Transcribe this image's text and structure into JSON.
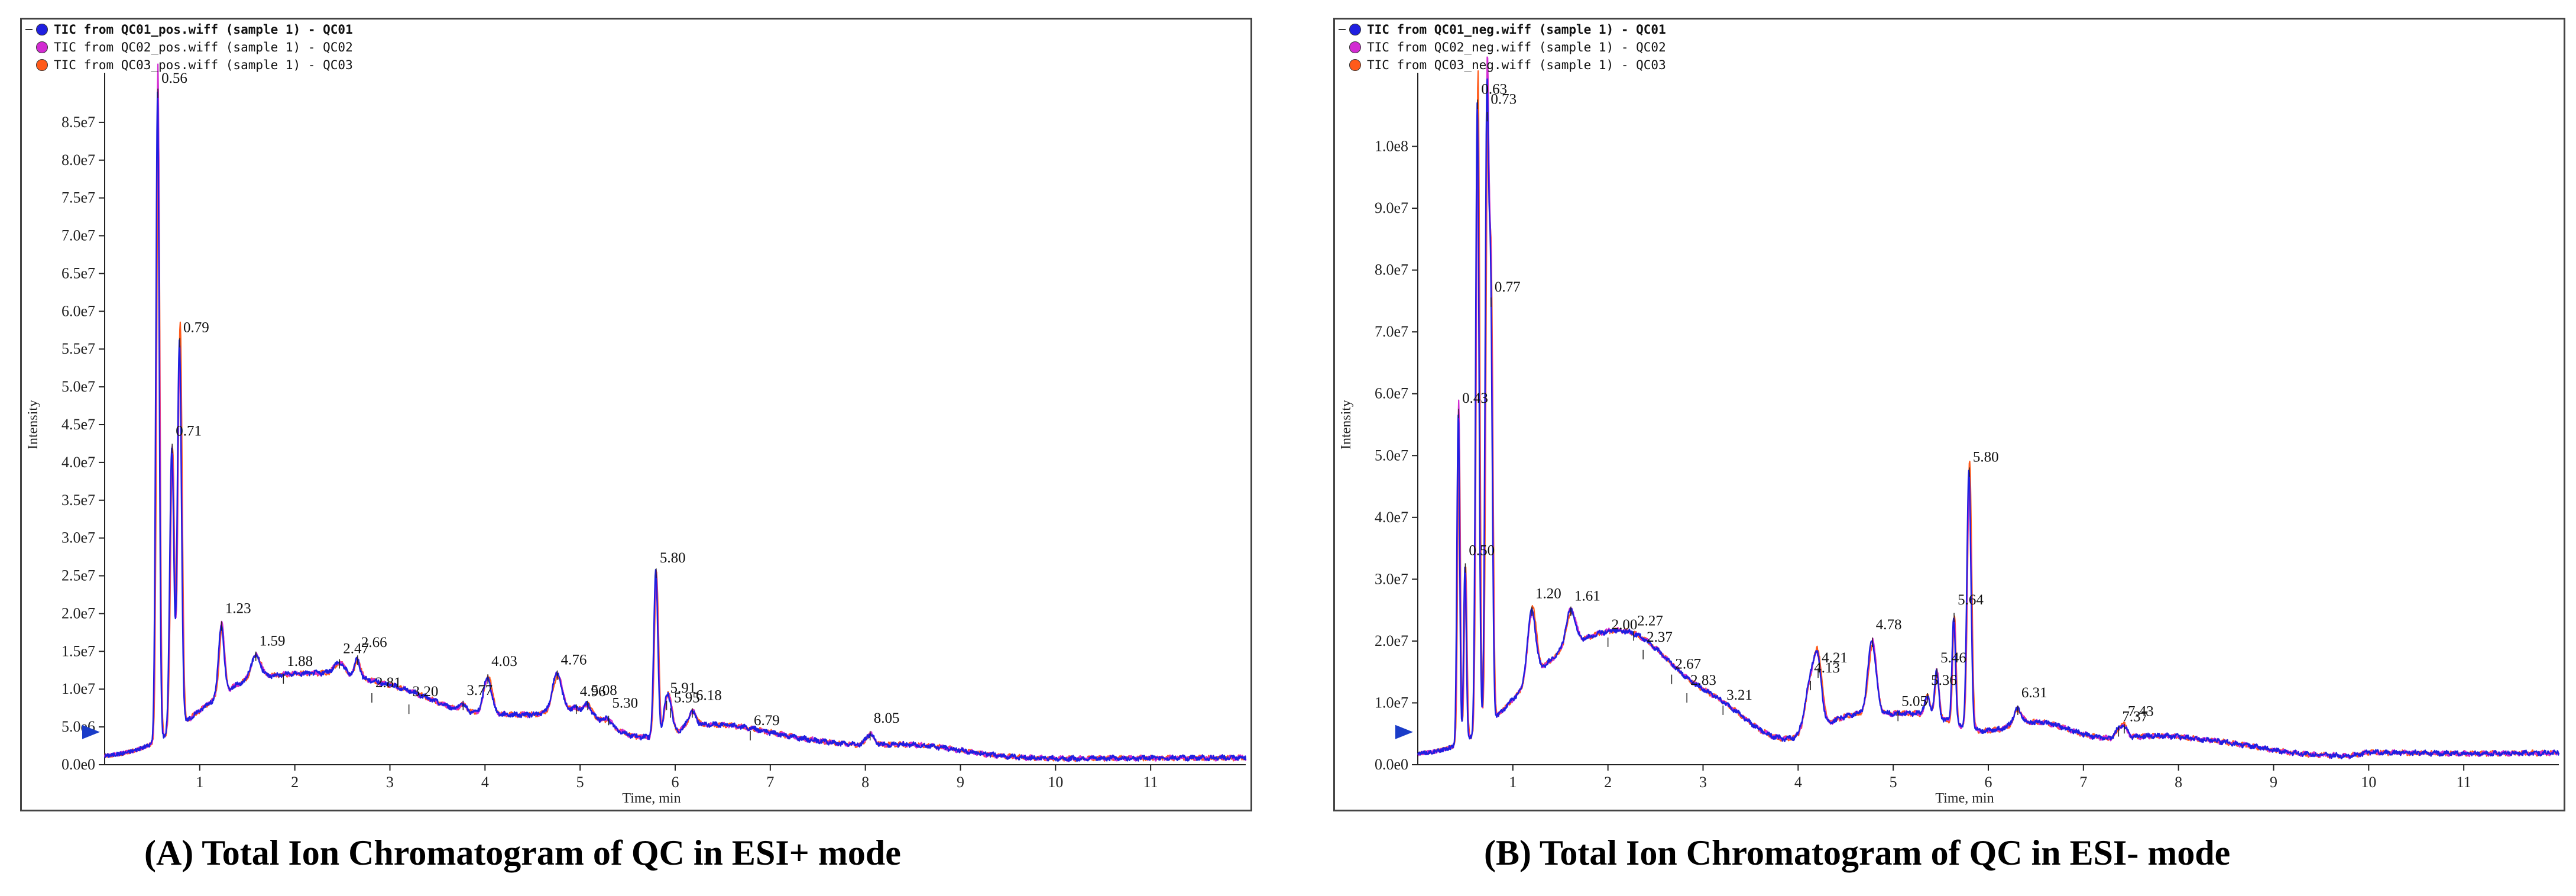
{
  "chart_data": [
    {
      "type": "line",
      "title": "(A) Total Ion Chromatogram of QC in ESI+ mode",
      "xlabel": "Time, min",
      "ylabel": "Intensity",
      "xlim": [
        0,
        12
      ],
      "ylim": [
        0,
        90000000.0
      ],
      "x_ticks": [
        1,
        2,
        3,
        4,
        5,
        6,
        7,
        8,
        9,
        10,
        11
      ],
      "y_ticks": [
        0,
        5000000.0,
        10000000.0,
        15000000.0,
        20000000.0,
        25000000.0,
        30000000.0,
        35000000.0,
        40000000.0,
        45000000.0,
        50000000.0,
        55000000.0,
        60000000.0,
        65000000.0,
        70000000.0,
        75000000.0,
        80000000.0,
        85000000.0
      ],
      "y_tick_labels": [
        "0.0e0",
        "5.0e6",
        "1.0e7",
        "1.5e7",
        "2.0e7",
        "2.5e7",
        "3.0e7",
        "3.5e7",
        "4.0e7",
        "4.5e7",
        "5.0e7",
        "5.5e7",
        "6.0e7",
        "6.5e7",
        "7.0e7",
        "7.5e7",
        "8.0e7",
        "8.5e7"
      ],
      "series": [
        {
          "name": "TIC from QC01_pos.wiff (sample 1) - QC01",
          "legend_text": "TIC from QC01_pos.wiff (sample 1) - QC01",
          "color": "#1f1fe0",
          "bold": true
        },
        {
          "name": "TIC from QC02_pos.wiff (sample 1) - QC02",
          "legend_text": "TIC from QC02_pos.wiff (sample 1) - QC02",
          "color": "#d22bd2",
          "bold": false
        },
        {
          "name": "TIC from QC03_pos.wiff (sample 1) - QC03",
          "legend_text": "TIC from QC03_pos.wiff (sample 1) - QC03",
          "color": "#ff5a1a",
          "bold": false
        }
      ],
      "baseline": [
        [
          0.0,
          900000.0
        ],
        [
          0.5,
          900000.0
        ],
        [
          0.9,
          1000000.0
        ],
        [
          2.0,
          1100000.0
        ],
        [
          3.0,
          1100000.0
        ],
        [
          4.0,
          1200000.0
        ],
        [
          5.0,
          1200000.0
        ],
        [
          6.0,
          1200000.0
        ],
        [
          7.0,
          1100000.0
        ],
        [
          8.0,
          1000000.0
        ],
        [
          9.0,
          1000000.0
        ],
        [
          10.0,
          800000.0
        ],
        [
          11.0,
          900000.0
        ],
        [
          12.0,
          900000.0
        ]
      ],
      "peaks": [
        {
          "label": "0.56",
          "x": 0.56,
          "y": 89000000.0,
          "w": 0.025
        },
        {
          "label": "0.71",
          "x": 0.71,
          "y": 42000000.0,
          "w": 0.03
        },
        {
          "label": "0.79",
          "x": 0.79,
          "y": 56000000.0,
          "w": 0.03
        },
        {
          "label": "1.23",
          "x": 1.23,
          "y": 18500000.0,
          "w": 0.04
        },
        {
          "label": "1.59",
          "x": 1.59,
          "y": 14500000.0,
          "w": 0.07
        },
        {
          "label": "1.88",
          "x": 1.88,
          "y": 11500000.0,
          "w": 0.08
        },
        {
          "label": "2.47",
          "x": 2.47,
          "y": 13500000.0,
          "w": 0.08
        },
        {
          "label": "2.66",
          "x": 2.66,
          "y": 14000000.0,
          "w": 0.04
        },
        {
          "label": "2.81",
          "x": 2.81,
          "y": 9000000.0,
          "w": 0.05
        },
        {
          "label": "3.20",
          "x": 3.2,
          "y": 7500000.0,
          "w": 0.05
        },
        {
          "label": "3.77",
          "x": 3.77,
          "y": 8000000.0,
          "w": 0.05
        },
        {
          "label": "4.03",
          "x": 4.03,
          "y": 11500000.0,
          "w": 0.06
        },
        {
          "label": "4.76",
          "x": 4.76,
          "y": 12000000.0,
          "w": 0.07
        },
        {
          "label": "4.96",
          "x": 4.96,
          "y": 7500000.0,
          "w": 0.06
        },
        {
          "label": "5.08",
          "x": 5.08,
          "y": 8000000.0,
          "w": 0.05
        },
        {
          "label": "5.30",
          "x": 5.3,
          "y": 6000000.0,
          "w": 0.05
        },
        {
          "label": "5.80",
          "x": 5.8,
          "y": 25500000.0,
          "w": 0.03
        },
        {
          "label": "5.91",
          "x": 5.91,
          "y": 8000000.0,
          "w": 0.04
        },
        {
          "label": "5.95",
          "x": 5.95,
          "y": 7000000.0,
          "w": 0.04
        },
        {
          "label": "6.18",
          "x": 6.18,
          "y": 7000000.0,
          "w": 0.06
        },
        {
          "label": "6.79",
          "x": 6.79,
          "y": 4000000.0,
          "w": 0.06
        },
        {
          "label": "8.05",
          "x": 8.05,
          "y": 4000000.0,
          "w": 0.06
        }
      ],
      "humps": [
        {
          "x": 1.5,
          "y": 9000000.0,
          "w": 0.8
        },
        {
          "x": 2.5,
          "y": 8000000.0,
          "w": 0.7
        },
        {
          "x": 3.3,
          "y": 5500000.0,
          "w": 0.6
        },
        {
          "x": 4.2,
          "y": 4500000.0,
          "w": 0.6
        },
        {
          "x": 5.0,
          "y": 5000000.0,
          "w": 0.5
        },
        {
          "x": 6.3,
          "y": 3500000.0,
          "w": 0.7
        },
        {
          "x": 7.2,
          "y": 2000000.0,
          "w": 0.8
        },
        {
          "x": 8.5,
          "y": 1500000.0,
          "w": 0.7
        }
      ]
    },
    {
      "type": "line",
      "title": "(B) Total Ion Chromatogram of QC in ESI- mode",
      "xlabel": "Time, min",
      "ylabel": "Intensity",
      "xlim": [
        0,
        12
      ],
      "ylim": [
        0,
        110000000.0
      ],
      "x_ticks": [
        1,
        2,
        3,
        4,
        5,
        6,
        7,
        8,
        9,
        10,
        11
      ],
      "y_ticks": [
        0,
        10000000.0,
        20000000.0,
        30000000.0,
        40000000.0,
        50000000.0,
        60000000.0,
        70000000.0,
        80000000.0,
        90000000.0,
        100000000.0
      ],
      "y_tick_labels": [
        "0.0e0",
        "1.0e7",
        "2.0e7",
        "3.0e7",
        "4.0e7",
        "5.0e7",
        "6.0e7",
        "7.0e7",
        "8.0e7",
        "9.0e7",
        "1.0e8"
      ],
      "series": [
        {
          "name": "TIC from QC01_neg.wiff (sample 1) - QC01",
          "legend_text": "TIC from QC01_neg.wiff (sample 1) - QC01",
          "color": "#1f1fe0",
          "bold": true
        },
        {
          "name": "TIC from QC02_neg.wiff (sample 1) - QC02",
          "legend_text": "TIC from QC02_neg.wiff (sample 1) - QC02",
          "color": "#d22bd2",
          "bold": false
        },
        {
          "name": "TIC from QC03_neg.wiff (sample 1) - QC03",
          "legend_text": "TIC from QC03_neg.wiff (sample 1) - QC03",
          "color": "#ff5a1a",
          "bold": false
        }
      ],
      "baseline": [
        [
          0.0,
          1500000.0
        ],
        [
          0.3,
          1500000.0
        ],
        [
          1.0,
          2000000.0
        ],
        [
          2.0,
          2200000.0
        ],
        [
          3.0,
          2000000.0
        ],
        [
          4.0,
          1800000.0
        ],
        [
          5.0,
          1800000.0
        ],
        [
          6.0,
          1800000.0
        ],
        [
          7.0,
          1800000.0
        ],
        [
          8.0,
          1800000.0
        ],
        [
          9.0,
          1600000.0
        ],
        [
          9.8,
          1400000.0
        ],
        [
          10.0,
          2000000.0
        ],
        [
          11.0,
          1800000.0
        ],
        [
          12.0,
          1900000.0
        ]
      ],
      "peaks": [
        {
          "label": "0.43",
          "x": 0.43,
          "y": 57000000.0,
          "w": 0.02
        },
        {
          "label": "0.50",
          "x": 0.5,
          "y": 32000000.0,
          "w": 0.02
        },
        {
          "label": "0.63",
          "x": 0.63,
          "y": 107000000.0,
          "w": 0.025
        },
        {
          "label": "0.73",
          "x": 0.73,
          "y": 105000000.0,
          "w": 0.025
        },
        {
          "label": "0.77",
          "x": 0.77,
          "y": 75000000.0,
          "w": 0.025
        },
        {
          "label": "1.20",
          "x": 1.2,
          "y": 25000000.0,
          "w": 0.06
        },
        {
          "label": "1.61",
          "x": 1.61,
          "y": 25000000.0,
          "w": 0.07
        },
        {
          "label": "2.00",
          "x": 2.0,
          "y": 20000000.0,
          "w": 0.06
        },
        {
          "label": "2.27",
          "x": 2.27,
          "y": 21000000.0,
          "w": 0.06
        },
        {
          "label": "2.37",
          "x": 2.37,
          "y": 18000000.0,
          "w": 0.05
        },
        {
          "label": "2.67",
          "x": 2.67,
          "y": 14000000.0,
          "w": 0.05
        },
        {
          "label": "2.83",
          "x": 2.83,
          "y": 11000000.0,
          "w": 0.05
        },
        {
          "label": "3.21",
          "x": 3.21,
          "y": 9000000.0,
          "w": 0.05
        },
        {
          "label": "4.13",
          "x": 4.13,
          "y": 13000000.0,
          "w": 0.08
        },
        {
          "label": "4.21",
          "x": 4.21,
          "y": 15000000.0,
          "w": 0.06
        },
        {
          "label": "4.78",
          "x": 4.78,
          "y": 20000000.0,
          "w": 0.06
        },
        {
          "label": "5.05",
          "x": 5.05,
          "y": 8000000.0,
          "w": 0.05
        },
        {
          "label": "5.36",
          "x": 5.36,
          "y": 11000000.0,
          "w": 0.04
        },
        {
          "label": "5.46",
          "x": 5.46,
          "y": 15000000.0,
          "w": 0.03
        },
        {
          "label": "5.64",
          "x": 5.64,
          "y": 24000000.0,
          "w": 0.025
        },
        {
          "label": "5.80",
          "x": 5.8,
          "y": 47500000.0,
          "w": 0.03
        },
        {
          "label": "6.31",
          "x": 6.31,
          "y": 9000000.0,
          "w": 0.06
        },
        {
          "label": "7.37",
          "x": 7.37,
          "y": 5500000.0,
          "w": 0.05
        },
        {
          "label": "7.43",
          "x": 7.43,
          "y": 6000000.0,
          "w": 0.05
        }
      ],
      "humps": [
        {
          "x": 1.6,
          "y": 15000000.0,
          "w": 0.8
        },
        {
          "x": 2.4,
          "y": 12000000.0,
          "w": 0.6
        },
        {
          "x": 3.2,
          "y": 6000000.0,
          "w": 0.5
        },
        {
          "x": 4.6,
          "y": 6000000.0,
          "w": 0.6
        },
        {
          "x": 5.4,
          "y": 5000000.0,
          "w": 0.5
        },
        {
          "x": 6.5,
          "y": 5000000.0,
          "w": 0.6
        },
        {
          "x": 7.7,
          "y": 2500000.0,
          "w": 0.6
        },
        {
          "x": 8.5,
          "y": 1500000.0,
          "w": 0.6
        }
      ]
    }
  ]
}
